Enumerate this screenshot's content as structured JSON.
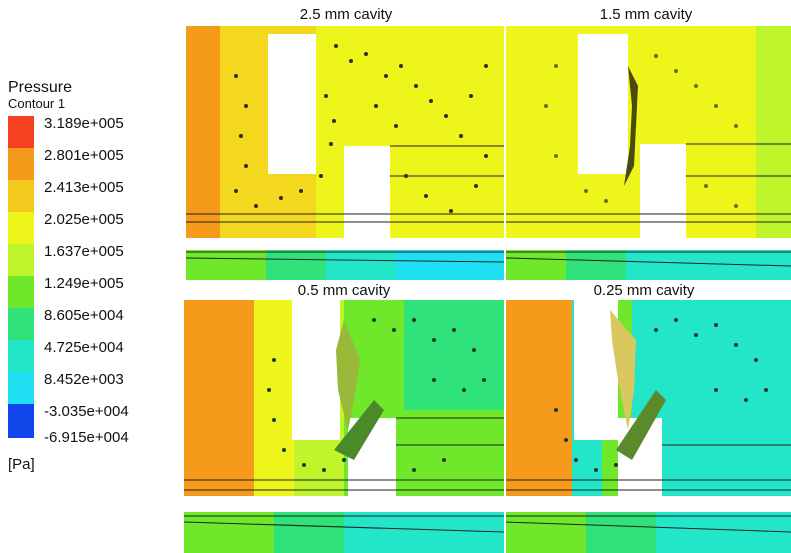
{
  "legend": {
    "title": "Pressure",
    "subtitle": "Contour 1",
    "unit": "[Pa]",
    "labels": [
      "3.189e+005",
      "2.801e+005",
      "2.413e+005",
      "2.025e+005",
      "1.637e+005",
      "1.249e+005",
      "8.605e+004",
      "4.725e+004",
      "8.452e+003",
      "-3.035e+004",
      "-6.915e+004"
    ],
    "colors": [
      "#f5411f",
      "#f59a1a",
      "#f3c91d",
      "#eef51b",
      "#bff52a",
      "#6fe82b",
      "#30e27a",
      "#23e5c8",
      "#1fe0f2",
      "#19a2ee",
      "#1246ea"
    ]
  },
  "panels": [
    {
      "title": "2.5 mm cavity"
    },
    {
      "title": "1.5 mm cavity"
    },
    {
      "title": "0.5 mm cavity"
    },
    {
      "title": "0.25 mm cavity"
    }
  ]
}
